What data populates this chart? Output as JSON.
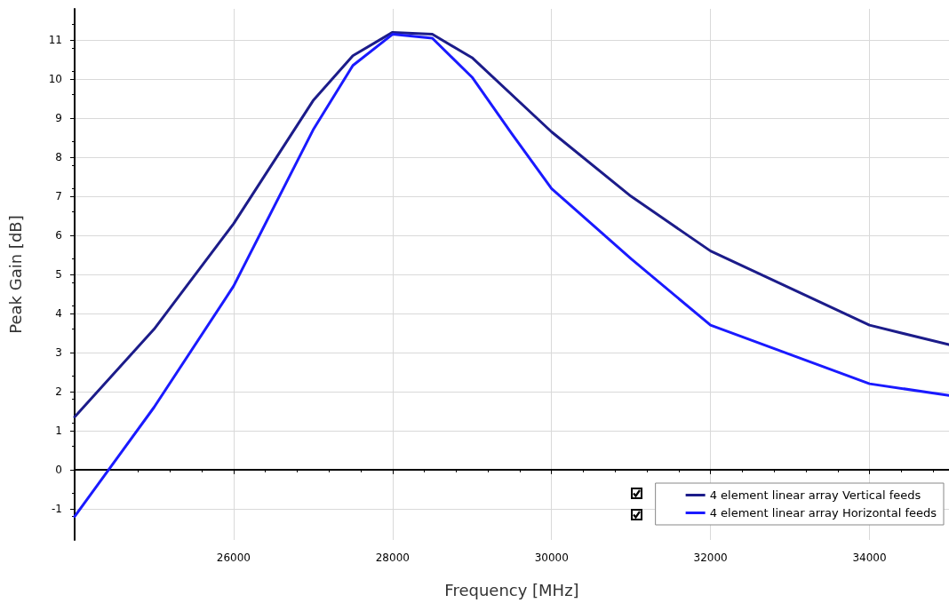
{
  "chart_data": {
    "type": "line",
    "xlabel": "Frequency [MHz]",
    "ylabel": "Peak Gain [dB]",
    "xlim": [
      24000,
      35000
    ],
    "xticks": [
      26000,
      28000,
      30000,
      32000,
      34000
    ],
    "ylim": [
      -1.8,
      11.8
    ],
    "yticks": [
      -1,
      0,
      1,
      2,
      3,
      4,
      5,
      6,
      7,
      8,
      9,
      10,
      11
    ],
    "grid": true,
    "legend": "bottom right",
    "marker": "none",
    "line_style": "solid",
    "series": [
      {
        "name": "4 element linear array Vertical feeds",
        "color": "#1c1c8a",
        "x": [
          24000,
          25000,
          26000,
          27000,
          27500,
          28000,
          28500,
          29000,
          30000,
          31000,
          32000,
          34000,
          35000
        ],
        "values": [
          1.35,
          3.6,
          6.3,
          9.45,
          10.6,
          11.2,
          11.15,
          10.55,
          8.65,
          7.0,
          5.6,
          3.7,
          3.2
        ]
      },
      {
        "name": "4 element linear array Horizontal feeds",
        "color": "#1a1aff",
        "x": [
          24000,
          25000,
          26000,
          27000,
          27500,
          28000,
          28500,
          29000,
          29500,
          30000,
          31000,
          32000,
          34000,
          35000
        ],
        "values": [
          -1.2,
          1.6,
          4.7,
          8.7,
          10.35,
          11.15,
          11.05,
          10.05,
          8.6,
          7.2,
          5.4,
          3.7,
          2.2,
          1.9
        ]
      }
    ]
  }
}
